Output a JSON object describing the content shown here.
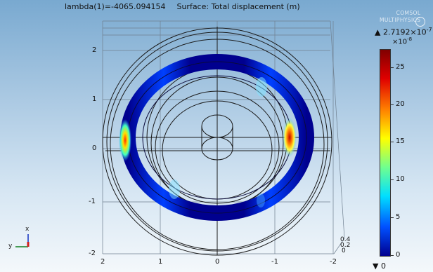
{
  "plot_title": {
    "eigen_label": "lambda(1)=-4065.094154",
    "surface_label": "Surface: Total displacement (m)"
  },
  "logo": {
    "line1": "COMSOL",
    "line2": "MULTIPHYSICS"
  },
  "axes": {
    "left_ticks": [
      "2",
      "1",
      "0",
      "-1",
      "-2"
    ],
    "bottom_ticks": [
      "2",
      "1",
      "0",
      "-1",
      "-2"
    ],
    "depth_ticks": [
      "0.4",
      "0.2",
      "0"
    ],
    "triad": {
      "x": "x",
      "y": "y"
    }
  },
  "colorbar": {
    "max_label": "2.7192×10",
    "max_exp": "-7",
    "scale_label": "×10",
    "scale_exp": "-8",
    "min_label": "0",
    "ticks": [
      "25",
      "20",
      "15",
      "10",
      "5",
      "0"
    ],
    "colors": [
      "#00008f",
      "#0050ff",
      "#00dfff",
      "#70ff8f",
      "#ffff00",
      "#ff8000",
      "#e00000",
      "#800000"
    ]
  }
}
